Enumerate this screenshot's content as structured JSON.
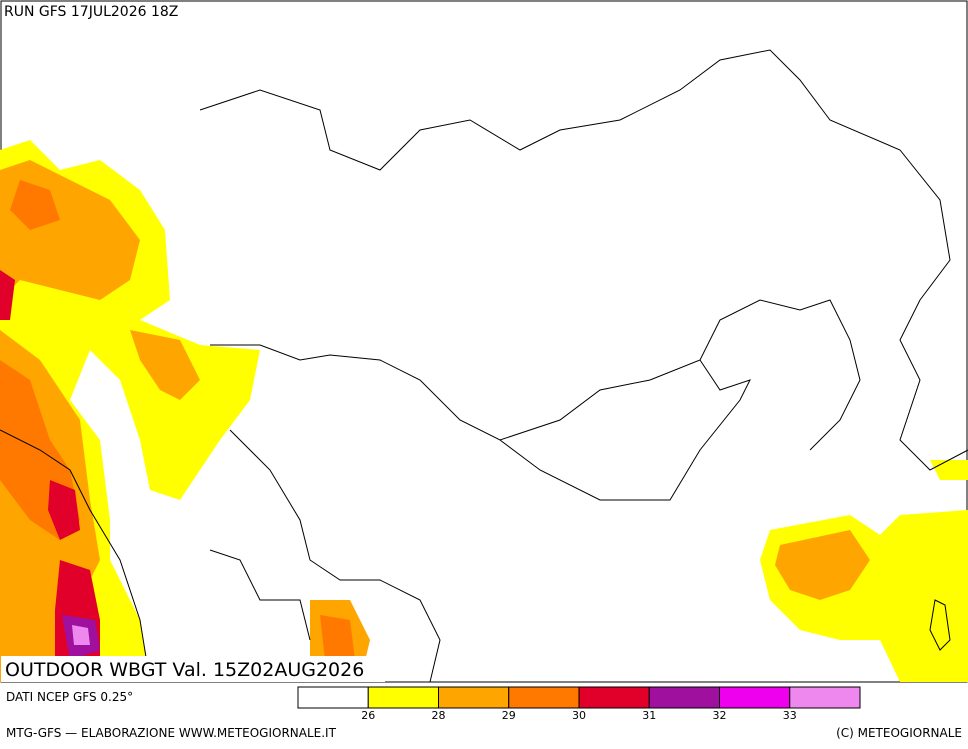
{
  "header": {
    "run": "RUN GFS 17JUL2026 18Z"
  },
  "map": {
    "title": "OUTDOOR WBGT Val. 15Z02AUG2026"
  },
  "legend": {
    "source": "DATI NCEP GFS 0.25°",
    "levels": [
      26,
      28,
      29,
      30,
      31,
      32,
      33
    ],
    "colors": [
      "#ffffff",
      "#ffff00",
      "#ffa500",
      "#ff7800",
      "#e0002a",
      "#a0109f",
      "#ee00ee",
      "#ee88ee"
    ]
  },
  "footer": {
    "left": "MTG-GFS — ELABORAZIONE WWW.METEOGIORNALE.IT",
    "right": "(C) METEOGIORNALE"
  }
}
